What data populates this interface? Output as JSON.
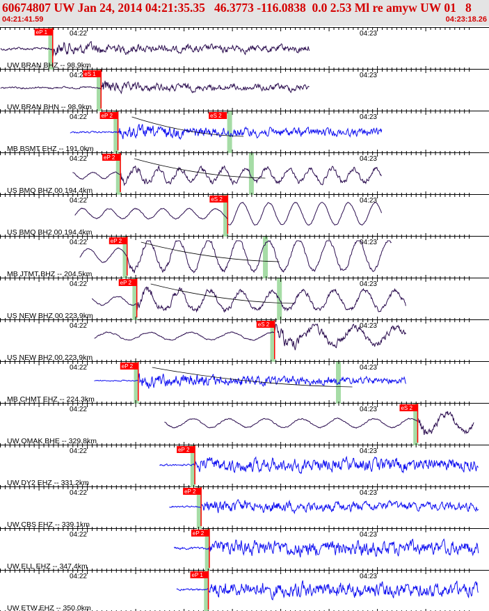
{
  "header": {
    "title": "60674807 UW Jan 24, 2014 04:21:35.35   46.3773 -116.0838  0.0 2.53 Ml re amyw UW 01   8",
    "start_time": "04:21:41.59",
    "end_time": "04:23:18.26"
  },
  "colors": {
    "header_bg": "#e4e4e4",
    "header_text": "#d40000",
    "trace_dark": "#2b0d4f",
    "trace_blue": "#1010f0",
    "pick_red": "#ff0000",
    "window_green": "#a6dca6"
  },
  "chart_data": {
    "type": "line",
    "title": "",
    "x_unit": "seconds after 04:21:41.59",
    "xlim": [
      0,
      96.67
    ],
    "minute_ticks": [
      {
        "label": "04:22",
        "t": 18.41
      },
      {
        "label": "04:23",
        "t": 78.41
      }
    ],
    "traces": [
      {
        "label": "UW BRAN BHZ -- 98.9km",
        "color": "dark",
        "pick": "eP 1",
        "pick_t": 10.9,
        "s_t": null
      },
      {
        "label": "UW BRAN BHN -- 98.9km",
        "color": "dark",
        "pick": "eS 1",
        "pick_t": 20.9,
        "s_t": null
      },
      {
        "label": "MB BSMT EHZ -- 191.0km",
        "color": "blue",
        "pick": "eP 2",
        "pick_t": 24.4,
        "s_t": 47.5,
        "s_label": "eS 2"
      },
      {
        "label": "US BMQ BHZ 00 194.4km",
        "color": "dark",
        "pick": "eP 2",
        "pick_t": 24.9,
        "s_t": 52.0
      },
      {
        "label": "US BMQ BH2 00 194.4km",
        "color": "dark",
        "pick": "eS 2",
        "pick_t": 47.1,
        "s_t": null
      },
      {
        "label": "MB JTMT BHZ -- 204.5km",
        "color": "dark",
        "pick": "eP 2",
        "pick_t": 26.3,
        "s_t": 54.9
      },
      {
        "label": "US NEW BHZ 00 223.9km",
        "color": "dark",
        "pick": "eP 2",
        "pick_t": 28.3,
        "s_t": 57.8
      },
      {
        "label": "US NEW BH2 00 223.9km",
        "color": "dark",
        "pick": "eS 2",
        "pick_t": 56.8,
        "s_t": null
      },
      {
        "label": "MB CHMT EHZ -- 224.3km",
        "color": "blue",
        "pick": "eP 2",
        "pick_t": 28.6,
        "s_t": 70.0
      },
      {
        "label": "UW OMAK BHE -- 329.8km",
        "color": "dark",
        "pick": "eS 2",
        "pick_t": 86.4,
        "s_t": null
      },
      {
        "label": "UW DY2 EHZ -- 331.2km",
        "color": "blue",
        "pick": "eP 2",
        "pick_t": 40.3,
        "s_t": null
      },
      {
        "label": "UW CBS EHZ -- 339.1km",
        "color": "blue",
        "pick": "eP 2",
        "pick_t": 41.6,
        "s_t": null
      },
      {
        "label": "UW ELL EHZ -- 347.4km",
        "color": "blue",
        "pick": "eP 2",
        "pick_t": 43.3,
        "s_t": null
      },
      {
        "label": "UW ETW EHZ -- 350.0km",
        "color": "blue",
        "pick": "eP 1",
        "pick_t": 43.1,
        "s_t": null
      }
    ]
  }
}
